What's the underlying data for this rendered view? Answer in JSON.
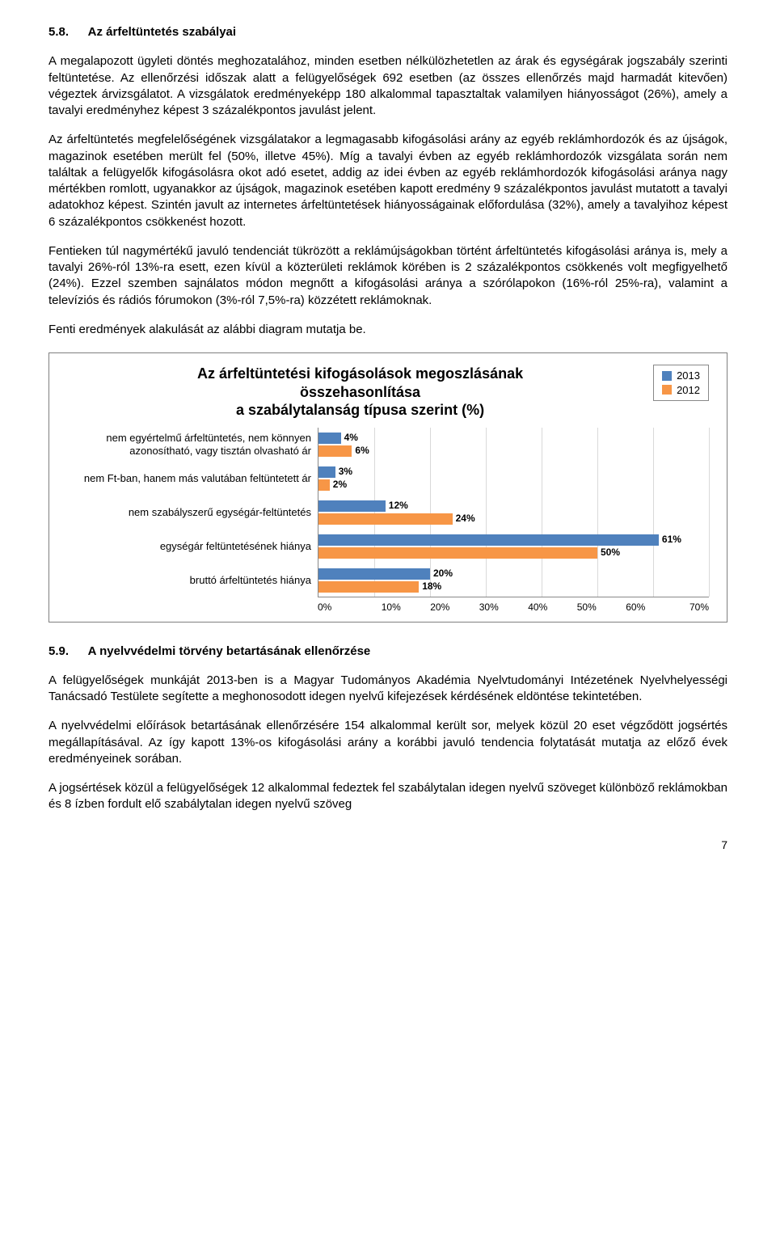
{
  "section58": {
    "number": "5.8.",
    "title": "Az árfeltüntetés szabályai",
    "p1": "A megalapozott ügyleti döntés meghozatalához, minden esetben nélkülözhetetlen az árak és egységárak jogszabály szerinti feltüntetése. Az ellenőrzési időszak alatt a felügyelőségek 692 esetben (az összes ellenőrzés majd harmadát kitevően) végeztek árvizsgálatot. A vizsgálatok eredményeképp 180 alkalommal tapasztaltak valamilyen hiányosságot (26%), amely a tavalyi eredményhez képest 3 százalékpontos javulást jelent.",
    "p2": "Az árfeltüntetés megfelelőségének vizsgálatakor a legmagasabb kifogásolási arány az egyéb reklámhordozók és az újságok, magazinok esetében merült fel (50%, illetve 45%). Míg a tavalyi évben az egyéb reklámhordozók vizsgálata során nem találtak a felügyelők kifogásolásra okot adó esetet, addig az idei évben az egyéb reklámhordozók kifogásolási aránya nagy mértékben romlott, ugyanakkor az újságok, magazinok esetében kapott eredmény 9 százalékpontos javulást mutatott a tavalyi adatokhoz képest. Szintén javult az internetes árfeltüntetések hiányosságainak előfordulása (32%), amely a tavalyihoz képest 6 százalékpontos csökkenést hozott.",
    "p3": "Fentieken túl nagymértékű javuló tendenciát tükrözött a reklámújságokban történt árfeltüntetés kifogásolási aránya is, mely a tavalyi 26%-ról 13%-ra esett, ezen kívül a közterületi reklámok körében is 2 százalékpontos csökkenés volt megfigyelhető (24%). Ezzel szemben sajnálatos módon megnőtt a kifogásolási aránya a szórólapokon (16%-ról 25%-ra), valamint a televíziós és rádiós fórumokon (3%-ról 7,5%-ra) közzétett reklámoknak.",
    "p4": "Fenti eredmények alakulását az alábbi diagram mutatja be."
  },
  "chart": {
    "title_l1": "Az árfeltüntetési kifogásolások megoszlásának",
    "title_l2": "összehasonlítása",
    "title_l3": "a szabálytalanság típusa szerint (%)",
    "legend": [
      {
        "label": "2013",
        "color": "#4f81bd"
      },
      {
        "label": "2012",
        "color": "#f79646"
      }
    ],
    "categories": [
      {
        "label_l1": "nem egyértelmű árfeltüntetés, nem könnyen",
        "label_l2": "azonosítható, vagy tisztán olvasható ár",
        "v2013": 4,
        "v2012": 6,
        "lbl2013": "4%",
        "lbl2012": "6%"
      },
      {
        "label_l1": "nem Ft-ban, hanem más valutában feltüntetett ár",
        "label_l2": "",
        "v2013": 3,
        "v2012": 2,
        "lbl2013": "3%",
        "lbl2012": "2%"
      },
      {
        "label_l1": "nem szabályszerű egységár-feltüntetés",
        "label_l2": "",
        "v2013": 12,
        "v2012": 24,
        "lbl2013": "12%",
        "lbl2012": "24%"
      },
      {
        "label_l1": "egységár feltüntetésének hiánya",
        "label_l2": "",
        "v2013": 61,
        "v2012": 50,
        "lbl2013": "61%",
        "lbl2012": "50%"
      },
      {
        "label_l1": "bruttó árfeltüntetés hiánya",
        "label_l2": "",
        "v2013": 20,
        "v2012": 18,
        "lbl2013": "20%",
        "lbl2012": "18%"
      }
    ],
    "xmax": 70,
    "xticks": [
      "0%",
      "10%",
      "20%",
      "30%",
      "40%",
      "50%",
      "60%",
      "70%"
    ],
    "colors": {
      "s2013": "#4f81bd",
      "s2012": "#f79646"
    },
    "grid_color": "#d9d9d9",
    "plot_bg": "#ffffff"
  },
  "section59": {
    "number": "5.9.",
    "title": "A nyelvvédelmi törvény betartásának ellenőrzése",
    "p1": "A felügyelőségek munkáját 2013-ben is a Magyar Tudományos Akadémia Nyelvtudományi Intézetének Nyelvhelyességi Tanácsadó Testülete segítette a meghonosodott idegen nyelvű kifejezések kérdésének eldöntése tekintetében.",
    "p2": "A nyelvvédelmi előírások betartásának ellenőrzésére 154 alkalommal került sor, melyek közül 20 eset végződött jogsértés megállapításával. Az így kapott 13%-os kifogásolási arány a korábbi javuló tendencia folytatását mutatja az előző évek eredményeinek sorában.",
    "p3": "A jogsértések közül a felügyelőségek 12 alkalommal fedeztek fel szabálytalan idegen nyelvű szöveget különböző reklámokban és 8 ízben fordult elő szabálytalan idegen nyelvű szöveg"
  },
  "page_number": "7"
}
